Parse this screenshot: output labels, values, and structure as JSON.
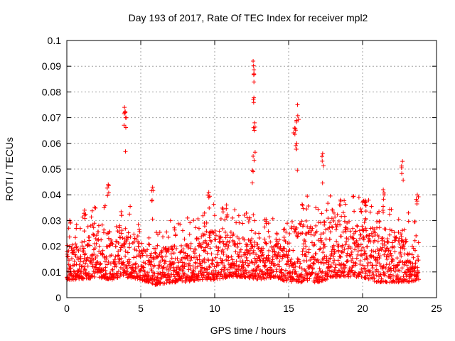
{
  "chart_data": {
    "type": "scatter",
    "title": "Day 193 of 2017, Rate Of TEC Index for receiver mpl2",
    "xlabel": "GPS time / hours",
    "ylabel": "ROTI / TECUs",
    "xlim": [
      0,
      25
    ],
    "ylim": [
      0,
      0.1
    ],
    "x_ticks": [
      "0",
      "5",
      "10",
      "15",
      "20",
      "25"
    ],
    "y_ticks": [
      "0",
      "0.01",
      "0.02",
      "0.03",
      "0.04",
      "0.05",
      "0.06",
      "0.07",
      "0.08",
      "0.09",
      "0.1"
    ],
    "grid": true,
    "marker": "+",
    "color": "#ff0000",
    "series": [
      {
        "name": "ROTI",
        "baseline_envelope": {
          "x": [
            0,
            1,
            2,
            3,
            4,
            5,
            6,
            7,
            8,
            9,
            10,
            11,
            12,
            13,
            14,
            15,
            16,
            17,
            18,
            19,
            20,
            21,
            22,
            23,
            23.8
          ],
          "low": [
            0.007,
            0.007,
            0.008,
            0.007,
            0.008,
            0.007,
            0.005,
            0.006,
            0.006,
            0.007,
            0.007,
            0.008,
            0.008,
            0.007,
            0.008,
            0.006,
            0.006,
            0.006,
            0.008,
            0.008,
            0.008,
            0.006,
            0.006,
            0.006,
            0.007
          ],
          "high": [
            0.02,
            0.022,
            0.026,
            0.028,
            0.027,
            0.024,
            0.02,
            0.02,
            0.021,
            0.025,
            0.027,
            0.026,
            0.024,
            0.022,
            0.022,
            0.028,
            0.03,
            0.028,
            0.03,
            0.03,
            0.029,
            0.028,
            0.026,
            0.024,
            0.024
          ]
        },
        "peaks": [
          {
            "x": 0.2,
            "y": 0.03
          },
          {
            "x": 1.2,
            "y": 0.034
          },
          {
            "x": 2.8,
            "y": 0.044
          },
          {
            "x": 3.9,
            "y": 0.074
          },
          {
            "x": 3.95,
            "y": 0.072
          },
          {
            "x": 5.8,
            "y": 0.043
          },
          {
            "x": 9.6,
            "y": 0.041
          },
          {
            "x": 10.8,
            "y": 0.036
          },
          {
            "x": 12.6,
            "y": 0.092
          },
          {
            "x": 12.65,
            "y": 0.087
          },
          {
            "x": 12.7,
            "y": 0.068
          },
          {
            "x": 12.6,
            "y": 0.055
          },
          {
            "x": 15.4,
            "y": 0.066
          },
          {
            "x": 15.6,
            "y": 0.075
          },
          {
            "x": 15.55,
            "y": 0.06
          },
          {
            "x": 17.3,
            "y": 0.056
          },
          {
            "x": 18.5,
            "y": 0.038
          },
          {
            "x": 20.2,
            "y": 0.036
          },
          {
            "x": 21.4,
            "y": 0.042
          },
          {
            "x": 22.7,
            "y": 0.053
          },
          {
            "x": 23.7,
            "y": 0.04
          }
        ]
      }
    ]
  }
}
